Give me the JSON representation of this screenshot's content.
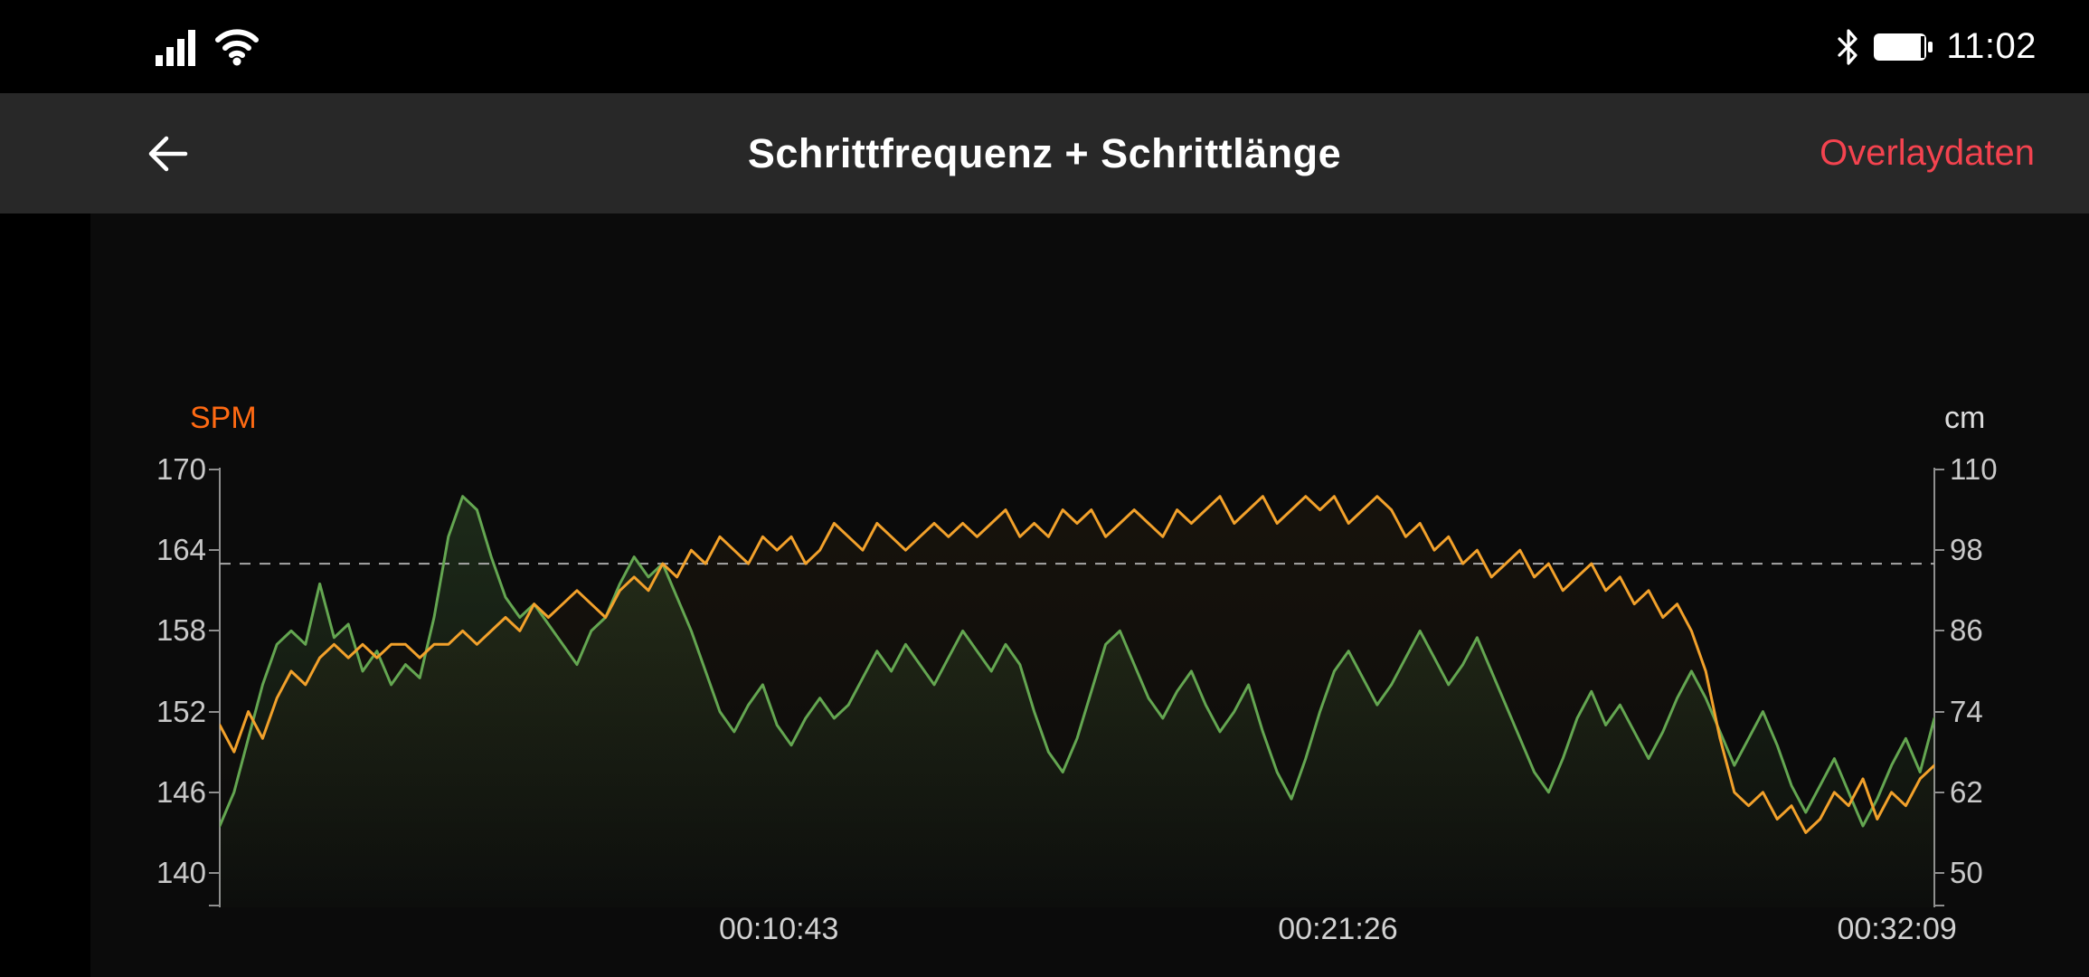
{
  "status_bar": {
    "time": "11:02",
    "icons": [
      "signal-icon",
      "wifi-icon",
      "bluetooth-icon",
      "battery-icon"
    ]
  },
  "header": {
    "title": "Schrittfrequenz + Schrittlänge",
    "action_label": "Overlaydaten"
  },
  "colors": {
    "accent_red": "#f4434f",
    "app_bar_bg": "#282828",
    "chart_bg": "#0b0b0b",
    "cadence_orange": "#f2a12b",
    "stride_green": "#64a651",
    "spm_label_orange": "#ff6a13",
    "axis_gray": "#8f8f8f"
  },
  "chart_data": {
    "type": "line",
    "title": "Schrittfrequenz + Schrittlänge",
    "grid": false,
    "legend": "none",
    "x_total_seconds": 1972,
    "x_tick_seconds": [
      643,
      1286,
      1929
    ],
    "x_tick_labels": [
      "00:10:43",
      "00:21:26",
      "00:32:09"
    ],
    "left_axis": {
      "title": "SPM",
      "min": 140,
      "max": 170,
      "ticks": [
        170,
        164,
        158,
        152,
        146,
        140
      ]
    },
    "right_axis": {
      "title": "cm",
      "min": 50,
      "max": 110,
      "ticks": [
        110,
        98,
        86,
        74,
        62,
        50
      ]
    },
    "avg_line": {
      "axis": "left",
      "value": 163,
      "style": "dashed"
    },
    "series": [
      {
        "name": "Schrittlänge",
        "unit": "cm",
        "axis": "right",
        "color": "#64a651",
        "fill_top_opacity": 0.2,
        "fill_bottom_opacity": 0.02,
        "values": [
          57,
          62,
          70,
          78,
          84,
          86,
          84,
          93,
          85,
          87,
          80,
          83,
          78,
          81,
          79,
          88,
          100,
          106,
          104,
          97,
          91,
          88,
          90,
          87,
          84,
          81,
          86,
          88,
          93,
          97,
          94,
          96,
          91,
          86,
          80,
          74,
          71,
          75,
          78,
          72,
          69,
          73,
          76,
          73,
          75,
          79,
          83,
          80,
          84,
          81,
          78,
          82,
          86,
          83,
          80,
          84,
          81,
          74,
          68,
          65,
          70,
          77,
          84,
          86,
          81,
          76,
          73,
          77,
          80,
          75,
          71,
          74,
          78,
          71,
          65,
          61,
          67,
          74,
          80,
          83,
          79,
          75,
          78,
          82,
          86,
          82,
          78,
          81,
          85,
          80,
          75,
          70,
          65,
          62,
          67,
          73,
          77,
          72,
          75,
          71,
          67,
          71,
          76,
          80,
          76,
          71,
          66,
          70,
          74,
          69,
          63,
          59,
          63,
          67,
          62,
          57,
          61,
          66,
          70,
          65,
          73
        ]
      },
      {
        "name": "Schrittfrequenz",
        "unit": "spm",
        "axis": "left",
        "color": "#f2a12b",
        "fill_top_opacity": 0.05,
        "fill_bottom_opacity": 0.0,
        "values": [
          151,
          149,
          152,
          150,
          153,
          155,
          154,
          156,
          157,
          156,
          157,
          156,
          157,
          157,
          156,
          157,
          157,
          158,
          157,
          158,
          159,
          158,
          160,
          159,
          160,
          161,
          160,
          159,
          161,
          162,
          161,
          163,
          162,
          164,
          163,
          165,
          164,
          163,
          165,
          164,
          165,
          163,
          164,
          166,
          165,
          164,
          166,
          165,
          164,
          165,
          166,
          165,
          166,
          165,
          166,
          167,
          165,
          166,
          165,
          167,
          166,
          167,
          165,
          166,
          167,
          166,
          165,
          167,
          166,
          167,
          168,
          166,
          167,
          168,
          166,
          167,
          168,
          167,
          168,
          166,
          167,
          168,
          167,
          165,
          166,
          164,
          165,
          163,
          164,
          162,
          163,
          164,
          162,
          163,
          161,
          162,
          163,
          161,
          162,
          160,
          161,
          159,
          160,
          158,
          155,
          150,
          146,
          145,
          146,
          144,
          145,
          143,
          144,
          146,
          145,
          147,
          144,
          146,
          145,
          147,
          148
        ]
      }
    ]
  }
}
